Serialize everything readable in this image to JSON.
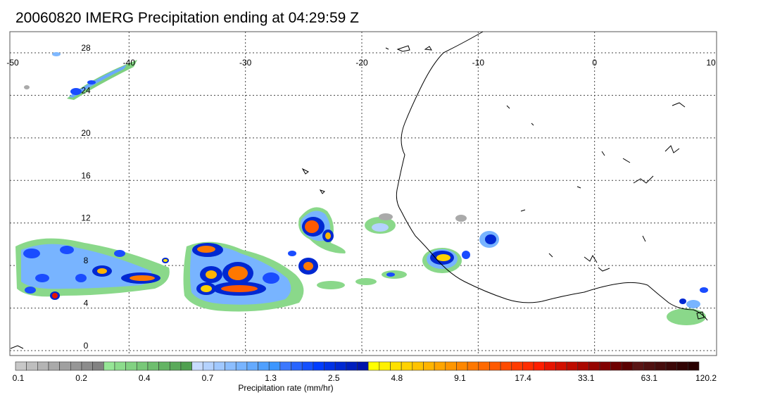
{
  "title": "20060820 IMERG Precipitation ending at 04:29:59 Z",
  "map": {
    "lon_range": [
      -50,
      10
    ],
    "lat_range": [
      -0.5,
      30
    ],
    "lon_ticks": [
      "-50",
      "-40",
      "-30",
      "-20",
      "-10",
      "0",
      "10"
    ],
    "lat_ticks": [
      "0",
      "4",
      "8",
      "12",
      "16",
      "20",
      "24",
      "28"
    ],
    "grid": "dotted",
    "coastline_color": "#000000"
  },
  "colorbar": {
    "title": "Precipitation rate (mm/hr)",
    "labels": [
      "0.1",
      "0.2",
      "0.4",
      "0.7",
      "1.3",
      "2.5",
      "4.8",
      "9.1",
      "17.4",
      "33.1",
      "63.1",
      "120.2"
    ],
    "colors": [
      "#c8c8c8",
      "#bebebe",
      "#b4b4b4",
      "#aaaaaa",
      "#a0a0a0",
      "#969696",
      "#8c8c8c",
      "#828282",
      "#96e696",
      "#8cdc8c",
      "#82d282",
      "#78c878",
      "#6ebe6e",
      "#64b464",
      "#5aaa5a",
      "#50a050",
      "#c8dcff",
      "#b4d2ff",
      "#a0c8ff",
      "#8cbeff",
      "#78b4ff",
      "#64aaff",
      "#50a0ff",
      "#3c96ff",
      "#3c78ff",
      "#2864ff",
      "#1450ff",
      "#003cff",
      "#0032e6",
      "#0028d2",
      "#001ebe",
      "#0014aa",
      "#ffff00",
      "#fff000",
      "#ffe100",
      "#ffd200",
      "#ffc300",
      "#ffb400",
      "#ffa500",
      "#ff9600",
      "#ff8700",
      "#ff7800",
      "#ff6900",
      "#ff5a00",
      "#ff4b00",
      "#ff3c00",
      "#ff2d00",
      "#ff1e00",
      "#e61400",
      "#d21000",
      "#be0c00",
      "#aa0800",
      "#960400",
      "#820000",
      "#6e0000",
      "#5a0000",
      "#5a1414",
      "#501010",
      "#460c0c",
      "#3c0808",
      "#320404",
      "#280000"
    ]
  }
}
